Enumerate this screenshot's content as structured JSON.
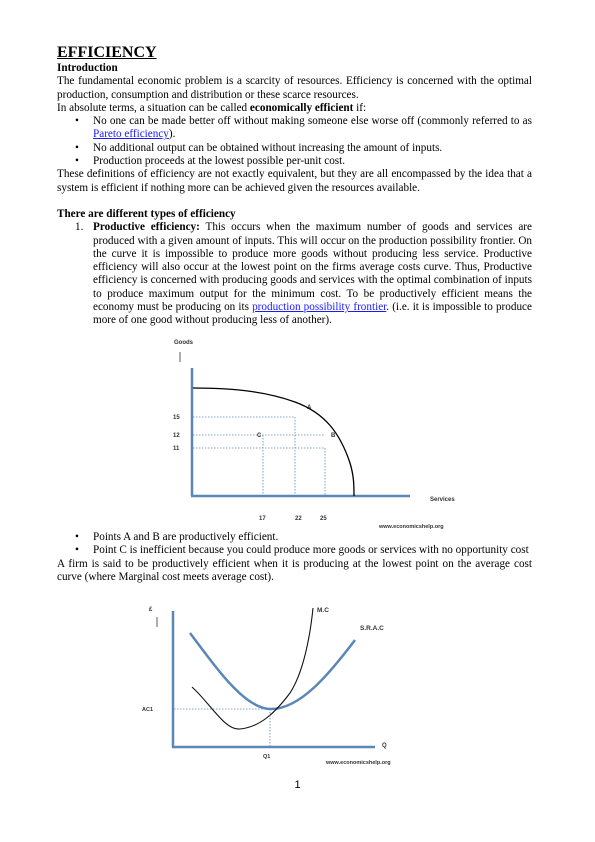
{
  "title": "EFFICIENCY",
  "intro_heading": "Introduction",
  "intro_p1": "The fundamental economic problem is a scarcity of resources. Efficiency is concerned with the optimal production, consumption and distribution or these scarce resources.",
  "intro_p2_before": "In absolute terms, a situation can be called ",
  "intro_p2_bold": "economically efficient",
  "intro_p2_after": " if:",
  "bullets1": {
    "b1_text": "No one can be made better off without making someone else worse off (commonly referred to as ",
    "b1_link": "Pareto efficiency",
    "b1_end": ").",
    "b2": "No additional output can be obtained without increasing the amount of inputs.",
    "b3": "Production proceeds at the lowest possible per-unit cost."
  },
  "defs_p": "These definitions of efficiency are not exactly equivalent, but they are all encompassed by the idea that a system is efficient if nothing more can be achieved given the resources available.",
  "types_heading": "There are different types of efficiency",
  "item1": {
    "num": "1.",
    "bold": "Productive efficiency:",
    "text": " This occurs when the maximum number of goods and services are produced with a given amount of inputs. This will occur on the production possibility frontier. On the curve it is impossible to produce more goods without producing less service. Productive efficiency will also occur at the lowest point on the firms average costs curve. Thus, Productive efficiency is concerned with producing goods and services with the optimal combination of inputs to produce maximum output for the minimum cost. To be productively efficient means the economy must be producing on its ",
    "link": "production possibility frontier",
    "end": ". (i.e. it is impossible to produce more of one good without producing less of another)."
  },
  "ppf": {
    "y_label": "Goods",
    "x_label": "Services",
    "y_ticks": [
      "15",
      "12",
      "11"
    ],
    "x_ticks": [
      "17",
      "22",
      "25"
    ],
    "point_a": "A",
    "point_b": "B",
    "point_c": "C",
    "source": "www.economicshelp.org",
    "curve_color": "#000000",
    "axis_color": "#5b86b8"
  },
  "bullets2": {
    "b1": "Points A and B are productively efficient.",
    "b2": "Point C is inefficient because you could produce more goods or services with no opportunity cost"
  },
  "firm_p": "A firm is said to be productively efficient when it is producing at the lowest point on the average cost curve (where Marginal cost meets average cost).",
  "cost": {
    "y_label": "£",
    "x_label": "Q",
    "mc_label": "M.C",
    "srac_label": "S.R.A.C",
    "ac_label": "AC1",
    "q_label": "Q1",
    "source": "www.economicshelp.org",
    "srac_color": "#5b86b8",
    "mc_color": "#000000"
  },
  "page_number": "1"
}
